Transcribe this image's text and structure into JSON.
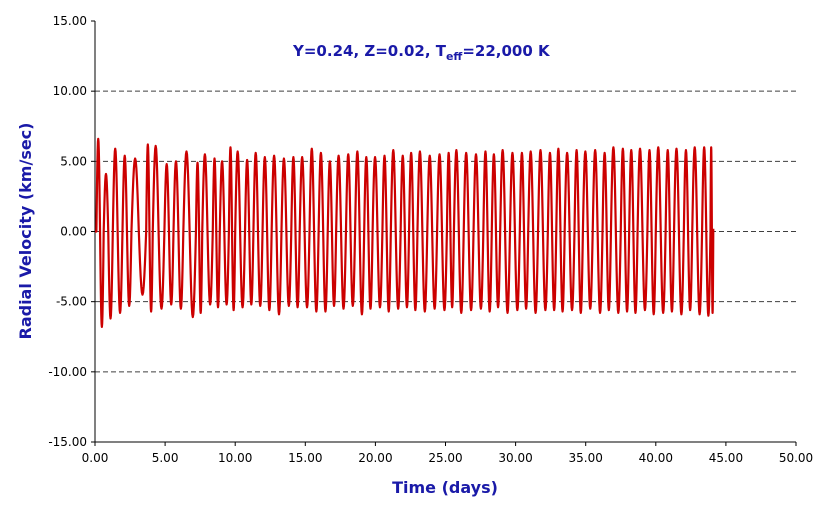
{
  "chart_data": {
    "type": "line",
    "title": {
      "pre": "Y=0.24, Z=0.02, T",
      "sub": "eff",
      "post": "=22,000 K"
    },
    "xlabel": "Time (days)",
    "ylabel": "Radial Velocity (km/sec)",
    "xlim": [
      0,
      50
    ],
    "ylim": [
      -15,
      15
    ],
    "x_ticks": [
      "0.00",
      "5.00",
      "10.00",
      "15.00",
      "20.00",
      "25.00",
      "30.00",
      "35.00",
      "40.00",
      "45.00",
      "50.00"
    ],
    "y_ticks": [
      "15.00",
      "10.00",
      "5.00",
      "0.00",
      "-5.00",
      "-10.00",
      "-15.00"
    ],
    "y_gridlines": [
      10,
      5,
      0,
      -5,
      -10
    ],
    "grid": "horizontal dashed",
    "legend": "none",
    "series": [
      {
        "color": "#cc0000",
        "x_start": 0.0,
        "x_end": 44.1,
        "cycles": [
          [
            0.1,
            6.6,
            -6.8
          ],
          [
            0.62,
            4.1,
            -6.2
          ],
          [
            1.27,
            5.9,
            -5.8
          ],
          [
            1.96,
            5.4,
            -5.3
          ],
          [
            2.6,
            5.2,
            -4.5
          ],
          [
            3.65,
            6.2,
            -5.7
          ],
          [
            4.12,
            6.1,
            -5.5
          ],
          [
            4.95,
            4.8,
            -5.2
          ],
          [
            5.6,
            5.0,
            -5.5
          ],
          [
            6.3,
            5.7,
            -6.1
          ],
          [
            7.2,
            4.9,
            -5.8
          ],
          [
            7.65,
            5.5,
            -5.2
          ],
          [
            8.4,
            5.2,
            -5.4
          ],
          [
            8.9,
            5.0,
            -5.2
          ],
          [
            9.55,
            6.0,
            -5.6
          ],
          [
            10.0,
            5.7,
            -5.4
          ],
          [
            10.7,
            5.1,
            -5.2
          ],
          [
            11.3,
            5.6,
            -5.3
          ],
          [
            11.95,
            5.3,
            -5.6
          ],
          [
            12.6,
            5.4,
            -5.9
          ],
          [
            13.3,
            5.2,
            -5.3
          ],
          [
            14.0,
            5.3,
            -5.4
          ],
          [
            14.6,
            5.3,
            -5.4
          ],
          [
            15.3,
            5.9,
            -5.7
          ],
          [
            15.95,
            5.6,
            -5.7
          ],
          [
            16.6,
            5.0,
            -5.3
          ],
          [
            17.2,
            5.4,
            -5.5
          ],
          [
            17.9,
            5.5,
            -5.3
          ],
          [
            18.55,
            5.7,
            -5.9
          ],
          [
            19.2,
            5.3,
            -5.5
          ],
          [
            19.8,
            5.3,
            -5.4
          ],
          [
            20.5,
            5.4,
            -5.7
          ],
          [
            21.1,
            5.8,
            -5.5
          ],
          [
            21.8,
            5.4,
            -5.4
          ],
          [
            22.4,
            5.6,
            -5.6
          ],
          [
            23.0,
            5.7,
            -5.7
          ],
          [
            23.7,
            5.4,
            -5.5
          ],
          [
            24.4,
            5.5,
            -5.6
          ],
          [
            25.1,
            5.6,
            -5.4
          ],
          [
            25.6,
            5.8,
            -5.8
          ],
          [
            26.3,
            5.6,
            -5.6
          ],
          [
            27.0,
            5.5,
            -5.5
          ],
          [
            27.7,
            5.7,
            -5.7
          ],
          [
            28.3,
            5.5,
            -5.4
          ],
          [
            28.9,
            5.8,
            -5.8
          ],
          [
            29.6,
            5.6,
            -5.6
          ],
          [
            30.3,
            5.6,
            -5.5
          ],
          [
            30.9,
            5.7,
            -5.8
          ],
          [
            31.6,
            5.8,
            -5.6
          ],
          [
            32.3,
            5.6,
            -5.6
          ],
          [
            32.9,
            5.9,
            -5.7
          ],
          [
            33.5,
            5.6,
            -5.6
          ],
          [
            34.2,
            5.8,
            -5.8
          ],
          [
            34.8,
            5.7,
            -5.5
          ],
          [
            35.5,
            5.8,
            -5.8
          ],
          [
            36.2,
            5.6,
            -5.6
          ],
          [
            36.8,
            6.0,
            -5.8
          ],
          [
            37.5,
            5.9,
            -5.7
          ],
          [
            38.1,
            5.8,
            -5.8
          ],
          [
            38.7,
            5.9,
            -5.6
          ],
          [
            39.4,
            5.8,
            -5.9
          ],
          [
            40.0,
            6.0,
            -5.8
          ],
          [
            40.7,
            5.8,
            -5.7
          ],
          [
            41.3,
            5.9,
            -5.9
          ],
          [
            42.0,
            5.8,
            -5.6
          ],
          [
            42.6,
            6.0,
            -5.9
          ],
          [
            43.3,
            6.0,
            -6.0
          ],
          [
            43.9,
            6.0,
            -5.8
          ]
        ],
        "end_value": 0.2
      }
    ]
  }
}
